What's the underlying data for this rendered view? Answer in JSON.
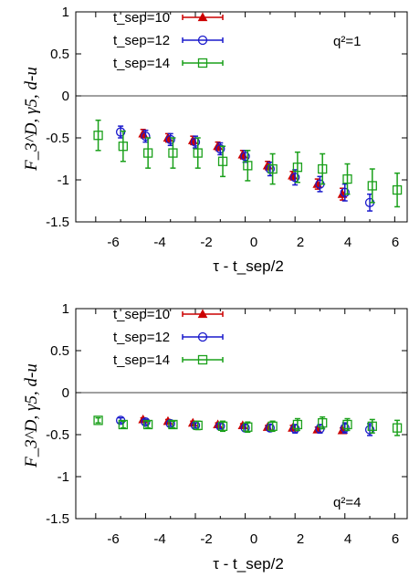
{
  "chart_data": [
    {
      "type": "scatter",
      "annotation": "q²=1",
      "xlabel": "τ - t_sep/2",
      "ylabel": "F_3^D, γ5, d-u",
      "xlim": [
        -6.8,
        6.5
      ],
      "ylim": [
        -1.5,
        1
      ],
      "xticks": [
        "-6",
        "-4",
        "-2",
        "0",
        "2",
        "4",
        "6"
      ],
      "yticks": [
        "1",
        "0.5",
        "0",
        "-0.5",
        "-1",
        "-1.5"
      ],
      "legend_position": "top-left",
      "series": [
        {
          "name": "t_sep=10",
          "marker": "triangle",
          "color": "#cc0000",
          "x": [
            -4,
            -3,
            -2,
            -1,
            0,
            1,
            2,
            3,
            4
          ],
          "y": [
            -0.45,
            -0.5,
            -0.53,
            -0.6,
            -0.7,
            -0.83,
            -0.95,
            -1.05,
            -1.17
          ],
          "err": [
            0.05,
            0.05,
            0.05,
            0.05,
            0.05,
            0.05,
            0.05,
            0.06,
            0.07
          ]
        },
        {
          "name": "t_sep=12",
          "marker": "circle",
          "color": "#1a1acc",
          "x": [
            -5,
            -4,
            -3,
            -2,
            -1,
            0,
            1,
            2,
            3,
            4,
            5
          ],
          "y": [
            -0.43,
            -0.48,
            -0.52,
            -0.55,
            -0.63,
            -0.72,
            -0.87,
            -0.97,
            -1.05,
            -1.15,
            -1.27
          ],
          "err": [
            0.07,
            0.07,
            0.07,
            0.07,
            0.07,
            0.07,
            0.08,
            0.09,
            0.09,
            0.1,
            0.1
          ]
        },
        {
          "name": "t_sep=14",
          "marker": "square",
          "color": "#1aa01a",
          "x": [
            -6,
            -5,
            -4,
            -3,
            -2,
            -1,
            0,
            1,
            2,
            3,
            4,
            5,
            6
          ],
          "y": [
            -0.47,
            -0.6,
            -0.68,
            -0.68,
            -0.68,
            -0.78,
            -0.83,
            -0.87,
            -0.85,
            -0.87,
            -0.99,
            -1.07,
            -1.12
          ],
          "err": [
            0.18,
            0.18,
            0.18,
            0.18,
            0.18,
            0.18,
            0.18,
            0.18,
            0.18,
            0.18,
            0.18,
            0.2,
            0.2
          ]
        }
      ]
    },
    {
      "type": "scatter",
      "annotation": "q²=4",
      "xlabel": "τ - t_sep/2",
      "ylabel": "F_3^D, γ5, d-u",
      "xlim": [
        -6.8,
        6.5
      ],
      "ylim": [
        -1.5,
        1
      ],
      "xticks": [
        "-6",
        "-4",
        "-2",
        "0",
        "2",
        "4",
        "6"
      ],
      "yticks": [
        "1",
        "0.5",
        "0",
        "-0.5",
        "-1",
        "-1.5"
      ],
      "legend_position": "top-left",
      "series": [
        {
          "name": "t_sep=10",
          "marker": "triangle",
          "color": "#cc0000",
          "x": [
            -4,
            -3,
            -2,
            -1,
            0,
            1,
            2,
            3,
            4
          ],
          "y": [
            -0.32,
            -0.34,
            -0.36,
            -0.38,
            -0.39,
            -0.41,
            -0.42,
            -0.44,
            -0.45
          ],
          "err": [
            0.02,
            0.02,
            0.02,
            0.02,
            0.02,
            0.02,
            0.03,
            0.03,
            0.03
          ]
        },
        {
          "name": "t_sep=12",
          "marker": "circle",
          "color": "#1a1acc",
          "x": [
            -5,
            -4,
            -3,
            -2,
            -1,
            0,
            1,
            2,
            3,
            4,
            5
          ],
          "y": [
            -0.33,
            -0.35,
            -0.37,
            -0.39,
            -0.4,
            -0.42,
            -0.42,
            -0.43,
            -0.43,
            -0.42,
            -0.44
          ],
          "err": [
            0.03,
            0.03,
            0.03,
            0.03,
            0.03,
            0.04,
            0.04,
            0.05,
            0.05,
            0.06,
            0.07
          ]
        },
        {
          "name": "t_sep=14",
          "marker": "square",
          "color": "#1aa01a",
          "x": [
            -6,
            -5,
            -4,
            -3,
            -2,
            -1,
            0,
            1,
            2,
            3,
            4,
            5,
            6
          ],
          "y": [
            -0.33,
            -0.38,
            -0.38,
            -0.38,
            -0.39,
            -0.4,
            -0.41,
            -0.4,
            -0.38,
            -0.36,
            -0.38,
            -0.4,
            -0.42
          ],
          "err": [
            0.03,
            0.04,
            0.04,
            0.04,
            0.05,
            0.06,
            0.06,
            0.06,
            0.07,
            0.07,
            0.07,
            0.08,
            0.09
          ]
        }
      ]
    }
  ]
}
